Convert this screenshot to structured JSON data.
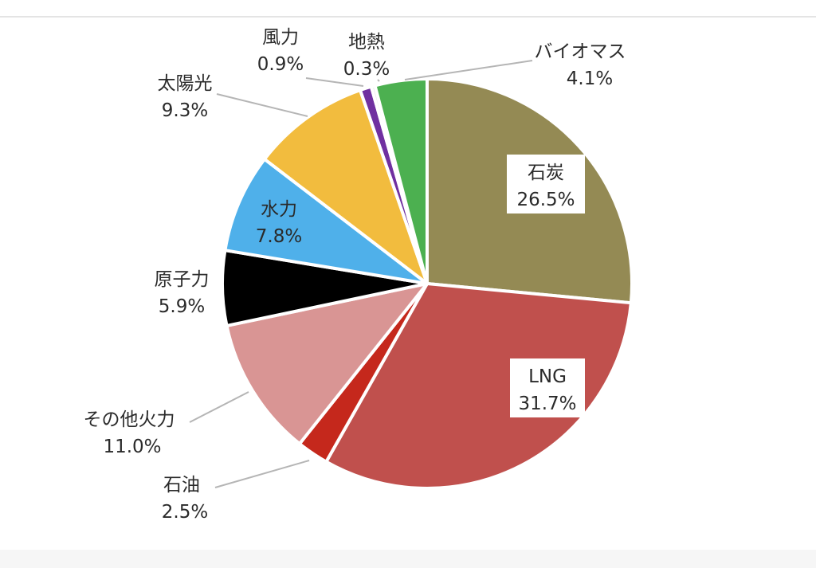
{
  "chart_data": {
    "type": "pie",
    "unit": "%",
    "slices": [
      {
        "name": "石炭",
        "value": 26.5,
        "label": "26.5%",
        "color": "#948a54"
      },
      {
        "name": "LNG",
        "value": 31.7,
        "label": "31.7%",
        "color": "#c0504d"
      },
      {
        "name": "石油",
        "value": 2.5,
        "label": "2.5%",
        "color": "#c5281c"
      },
      {
        "name": "その他火力",
        "value": 11.0,
        "label": "11.0%",
        "color": "#d99594"
      },
      {
        "name": "原子力",
        "value": 5.9,
        "label": "5.9%",
        "color": "#000000"
      },
      {
        "name": "水力",
        "value": 7.8,
        "label": "7.8%",
        "color": "#4fb0ea"
      },
      {
        "name": "太陽光",
        "value": 9.3,
        "label": "9.3%",
        "color": "#f2bc3e"
      },
      {
        "name": "風力",
        "value": 0.9,
        "label": "0.9%",
        "color": "#7030a0"
      },
      {
        "name": "地熱",
        "value": 0.3,
        "label": "0.3%",
        "color": "#e8e8e8"
      },
      {
        "name": "バイオマス",
        "value": 4.1,
        "label": "4.1%",
        "color": "#4cb050"
      }
    ]
  }
}
